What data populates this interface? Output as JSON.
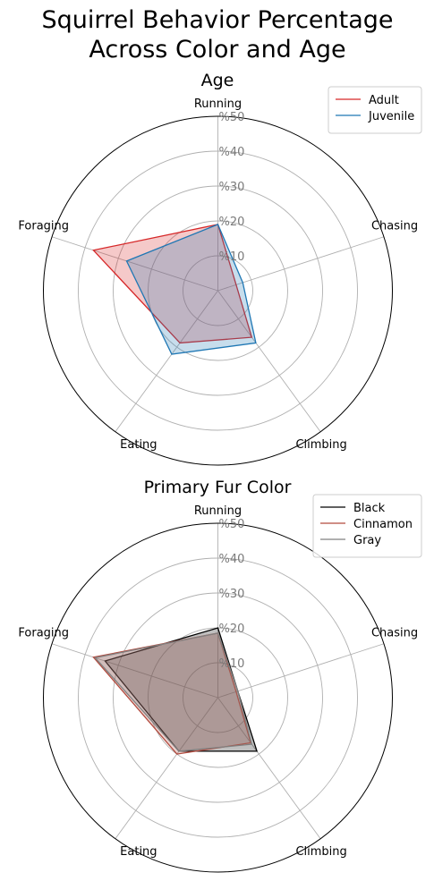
{
  "figure": {
    "title_line1": "Squirrel Behavior Percentage",
    "title_line2": "Across Color and Age"
  },
  "chart_data": [
    {
      "type": "radar",
      "title": "Age",
      "categories": [
        "Running",
        "Chasing",
        "Climbing",
        "Eating",
        "Foraging"
      ],
      "rlim": [
        0,
        50
      ],
      "rticks": [
        10,
        20,
        30,
        40,
        50
      ],
      "rtick_labels": [
        "%10",
        "%20",
        "%30",
        "%40",
        "%50"
      ],
      "grid": true,
      "legend_position": "top-right",
      "series": [
        {
          "name": "Adult",
          "values": [
            19,
            5.5,
            16.5,
            18.5,
            37.5
          ],
          "color": "#d62728"
        },
        {
          "name": "Juvenile",
          "values": [
            19,
            7.5,
            18.5,
            22.5,
            27.5
          ],
          "color": "#1f77b4"
        }
      ]
    },
    {
      "type": "radar",
      "title": "Primary Fur Color",
      "categories": [
        "Running",
        "Chasing",
        "Climbing",
        "Eating",
        "Foraging"
      ],
      "rlim": [
        0,
        50
      ],
      "rticks": [
        10,
        20,
        30,
        40,
        50
      ],
      "rtick_labels": [
        "%10",
        "%20",
        "%30",
        "%40",
        "%50"
      ],
      "grid": true,
      "legend_position": "top-right",
      "series": [
        {
          "name": "Black",
          "values": [
            20,
            6,
            19,
            19,
            34
          ],
          "color": "#000000"
        },
        {
          "name": "Cinnamon",
          "values": [
            18.5,
            5.5,
            16,
            20,
            37.5
          ],
          "color": "#b24a3e"
        },
        {
          "name": "Gray",
          "values": [
            18.5,
            6,
            16.5,
            19,
            37
          ],
          "color": "#808080"
        }
      ]
    }
  ]
}
